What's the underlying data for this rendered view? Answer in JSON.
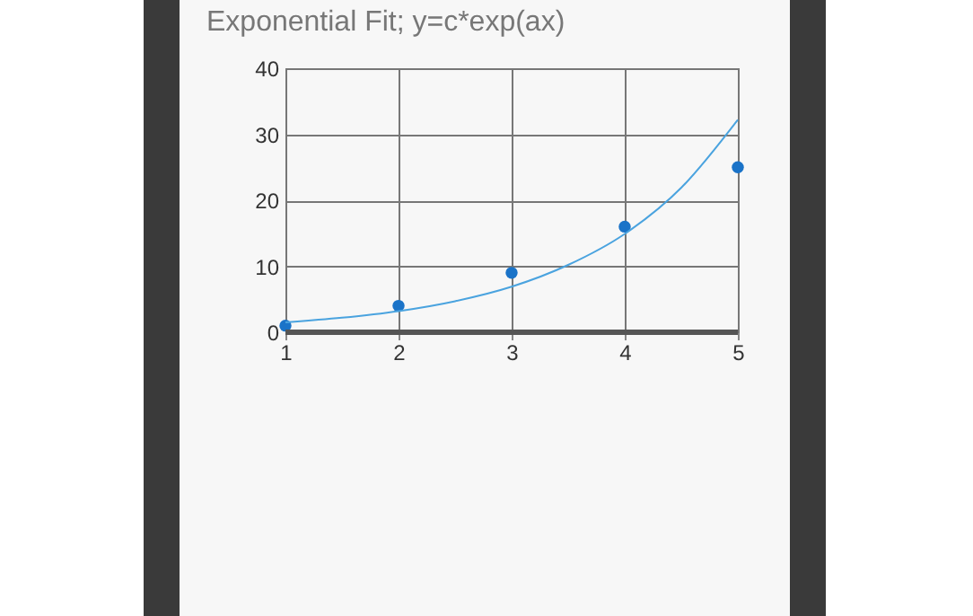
{
  "chart_data": {
    "type": "scatter",
    "title": "Exponential Fit; y=c*exp(ax)",
    "x": [
      1,
      2,
      3,
      4,
      5
    ],
    "series": [
      {
        "color": "#1a73c8",
        "marker": "circle",
        "values": [
          1,
          4,
          9,
          16,
          25
        ]
      },
      {
        "type": "line",
        "color": "#4aa3df",
        "x": [
          1,
          1.5,
          2,
          2.5,
          3,
          3.5,
          4,
          4.5,
          5
        ],
        "values": [
          1.5,
          2.2,
          3.2,
          4.7,
          6.9,
          10.2,
          14.9,
          21.9,
          32.2
        ]
      }
    ],
    "xlim": [
      1,
      5
    ],
    "xticks": [
      1,
      2,
      3,
      4,
      5
    ],
    "ylim": [
      0,
      40
    ],
    "yticks": [
      0,
      10,
      20,
      30,
      40
    ],
    "grid": true
  }
}
